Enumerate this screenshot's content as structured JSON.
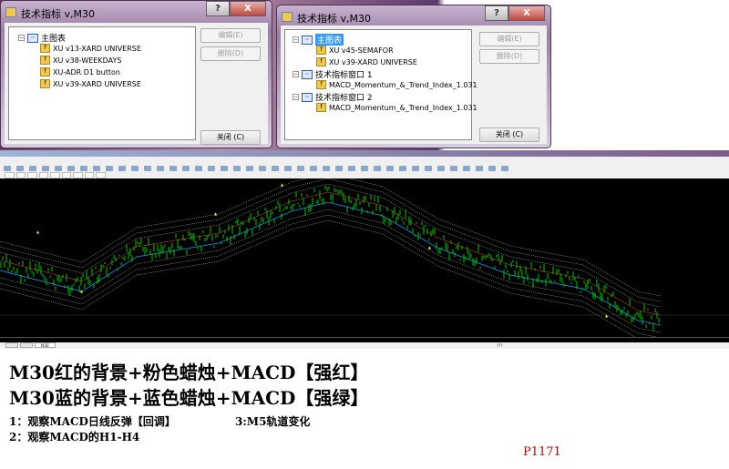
{
  "dialog1": {
    "title": "技术指标 v,M30",
    "help": "?",
    "close_x": "X",
    "root": "主图表",
    "items": [
      "XU v13-XARD UNIVERSE",
      "XU v38-WEEKDAYS",
      "XU-ADR D1 button",
      "XU v39-XARD UNIVERSE"
    ],
    "edit": "编辑(E)",
    "delete": "删除(D)",
    "close": "关闭 (C)"
  },
  "dialog2": {
    "title": "技术指标 v,M30",
    "help": "?",
    "close_x": "X",
    "root": "主图表",
    "root_items": [
      "XU v45-SEMAFOR",
      "XU v39-XARD UNIVERSE"
    ],
    "win1": "技术指标窗口 1",
    "win1_item": "MACD_Momentum_&_Trend_Index_1.031",
    "win2": "技术指标窗口 2",
    "win2_item": "MACD_Momentum_&_Trend_Index_1.031",
    "edit": "编辑(E)",
    "delete": "删除(D)",
    "close": "关闭 (C)"
  },
  "terminal": {
    "tabs": [
      "",
      "",
      "M30"
    ],
    "status_right": "???"
  },
  "colors": {
    "candles": "#00c800",
    "band_outer": "#c8c8c8",
    "band_mid": "#00a0ff",
    "band_red": "#ff4040",
    "markers": "#ffff00",
    "background": "#000000"
  },
  "notes": {
    "line1": "M30红的背景+粉色蜡烛+MACD【强红】",
    "line2": "M30蓝的背景+蓝色蜡烛+MACD【强绿】",
    "item1": "1：观察MACD日线反弹【回调】",
    "item3": "3:M5轨道变化",
    "item2": "2：观察MACD的H1-H4",
    "page": "P1171"
  }
}
